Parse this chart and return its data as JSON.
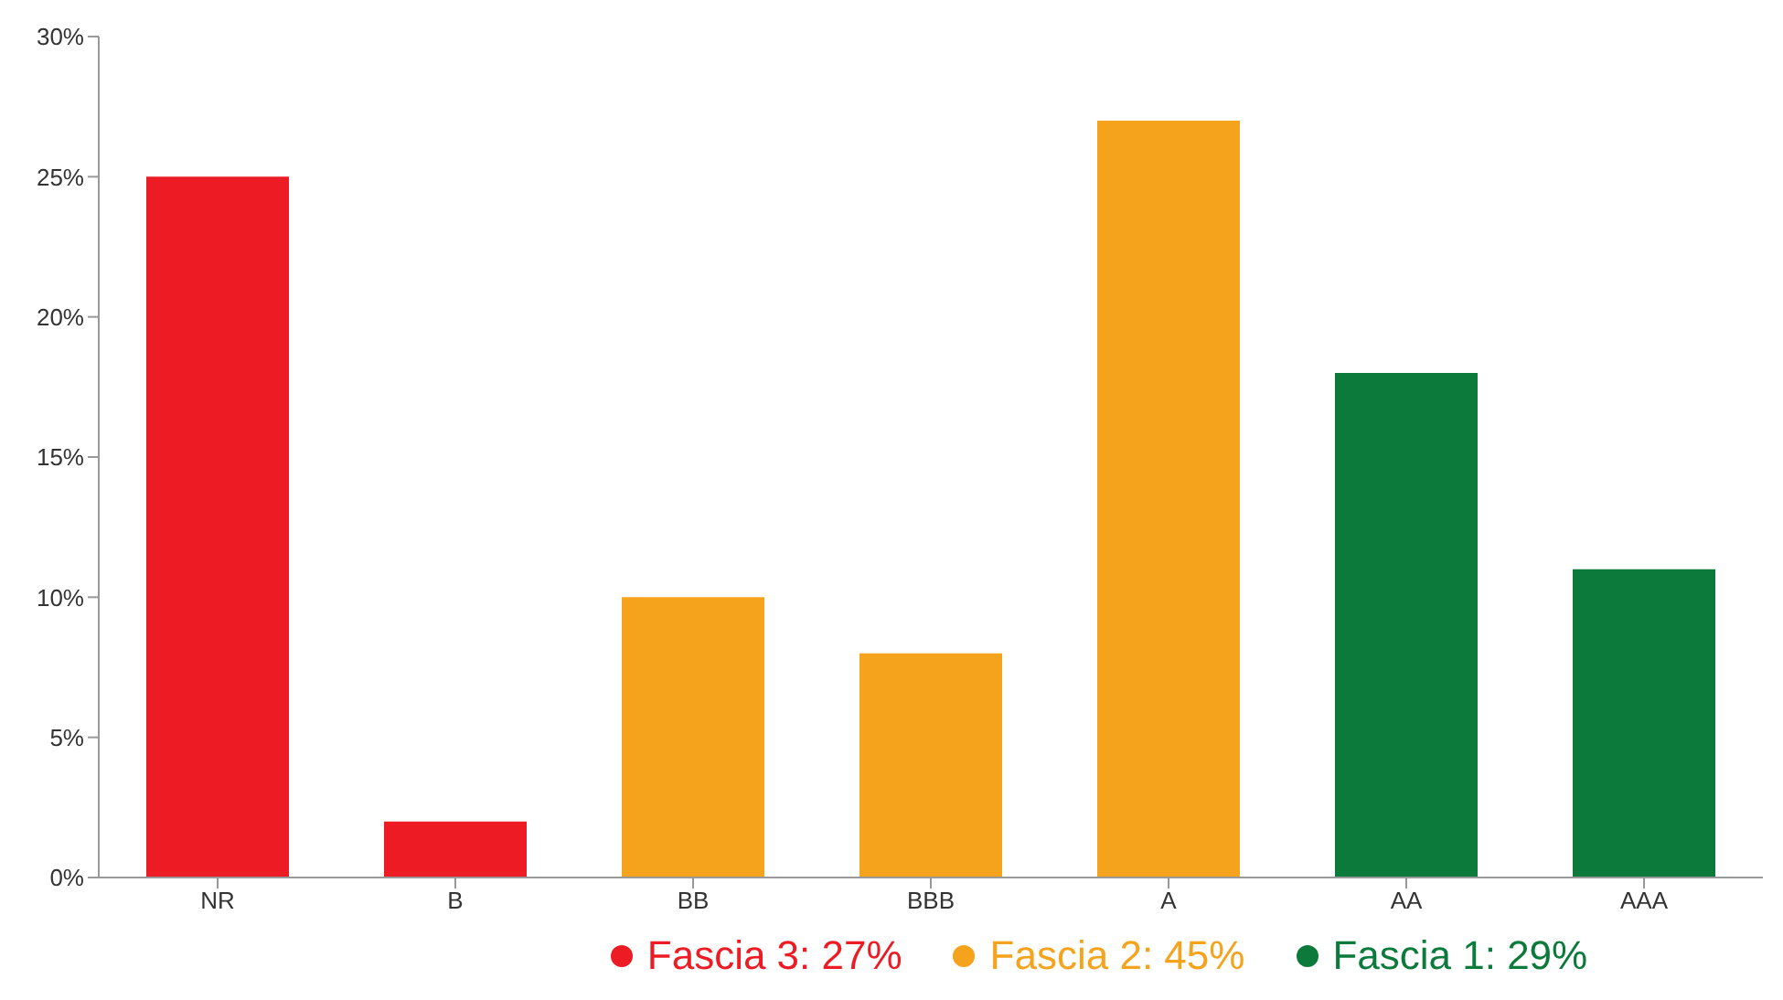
{
  "chart_data": {
    "type": "bar",
    "categories": [
      "NR",
      "B",
      "BB",
      "BBB",
      "A",
      "AA",
      "AAA"
    ],
    "stacked": true,
    "series": [
      {
        "name": "Fascia 3: 27%",
        "color": "#ed1c24",
        "values": [
          25,
          2,
          null,
          null,
          null,
          null,
          null
        ]
      },
      {
        "name": "Fascia 2: 45%",
        "color": "#f5a31d",
        "values": [
          null,
          null,
          10,
          8,
          27,
          null,
          null
        ]
      },
      {
        "name": "Fascia 1: 29%",
        "color": "#0b7a3b",
        "values": [
          null,
          null,
          null,
          null,
          null,
          18,
          11
        ]
      }
    ],
    "ylim": [
      0,
      30
    ],
    "yticks": [
      {
        "value": 0,
        "label": "0%"
      },
      {
        "value": 5,
        "label": "5%"
      },
      {
        "value": 10,
        "label": "10%"
      },
      {
        "value": 15,
        "label": "15%"
      },
      {
        "value": 20,
        "label": "20%"
      },
      {
        "value": 25,
        "label": "25%"
      },
      {
        "value": 30,
        "label": "30%"
      }
    ],
    "grid": false,
    "legend": "bottom"
  }
}
